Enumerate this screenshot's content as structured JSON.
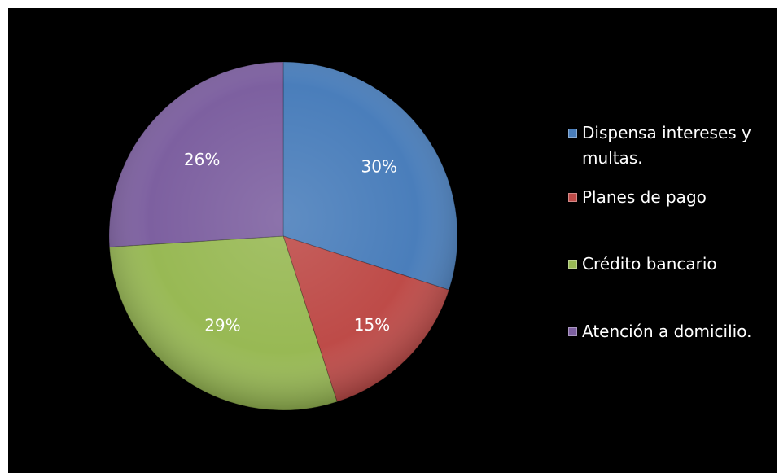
{
  "chart_data": {
    "type": "pie",
    "title": "",
    "slices": [
      {
        "label": "Dispensa intereses y multas.",
        "value": 30,
        "display": "30%",
        "color": "#4a7ebb"
      },
      {
        "label": "Planes de pago",
        "value": 15,
        "display": "15%",
        "color": "#be4b48"
      },
      {
        "label": "Crédito bancario",
        "value": 29,
        "display": "29%",
        "color": "#98b954"
      },
      {
        "label": "Atención a domicilio.",
        "value": 26,
        "display": "26%",
        "color": "#7d60a0"
      }
    ],
    "legend_position": "right",
    "background": "#000000"
  }
}
